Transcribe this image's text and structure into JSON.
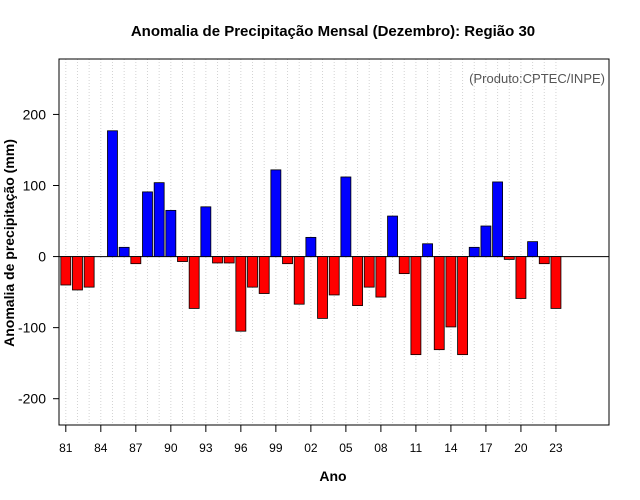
{
  "chart_data": {
    "type": "bar",
    "title": "Anomalia de Precipitação Mensal (Dezembro): Região 30",
    "xlabel": "Ano",
    "ylabel": "Anomalia de precipitação (mm)",
    "credit": "(Produto:CPTEC/INPE)",
    "ylim": [
      -237,
      278
    ],
    "yticks": [
      -200,
      -100,
      0,
      100,
      200
    ],
    "grid": "vertical dotted",
    "colors": {
      "positive": "#0000ff",
      "negative": "#ff0000",
      "frame": "#000000",
      "grid": "#d3d3d3"
    },
    "categories": [
      "81",
      "82",
      "83",
      "84",
      "85",
      "86",
      "87",
      "88",
      "89",
      "90",
      "91",
      "92",
      "93",
      "94",
      "95",
      "96",
      "97",
      "98",
      "99",
      "00",
      "01",
      "02",
      "03",
      "04",
      "05",
      "06",
      "07",
      "08",
      "09",
      "10",
      "11",
      "12",
      "13",
      "14",
      "15",
      "16",
      "17",
      "18",
      "19",
      "20",
      "21",
      "22",
      "23"
    ],
    "xtick_labels": [
      "81",
      "84",
      "87",
      "90",
      "93",
      "96",
      "99",
      "02",
      "05",
      "08",
      "11",
      "14",
      "17",
      "20",
      "23"
    ],
    "values": [
      -40,
      -47,
      -43,
      0,
      177,
      13,
      -10,
      91,
      104,
      65,
      -7,
      -73,
      70,
      -9,
      -9,
      -105,
      -43,
      -52,
      122,
      -10,
      -67,
      27,
      -87,
      -54,
      112,
      -69,
      -43,
      -57,
      57,
      -24,
      -138,
      18,
      -131,
      -99,
      -138,
      13,
      43,
      105,
      -4,
      -59,
      21,
      -10,
      -73
    ]
  }
}
